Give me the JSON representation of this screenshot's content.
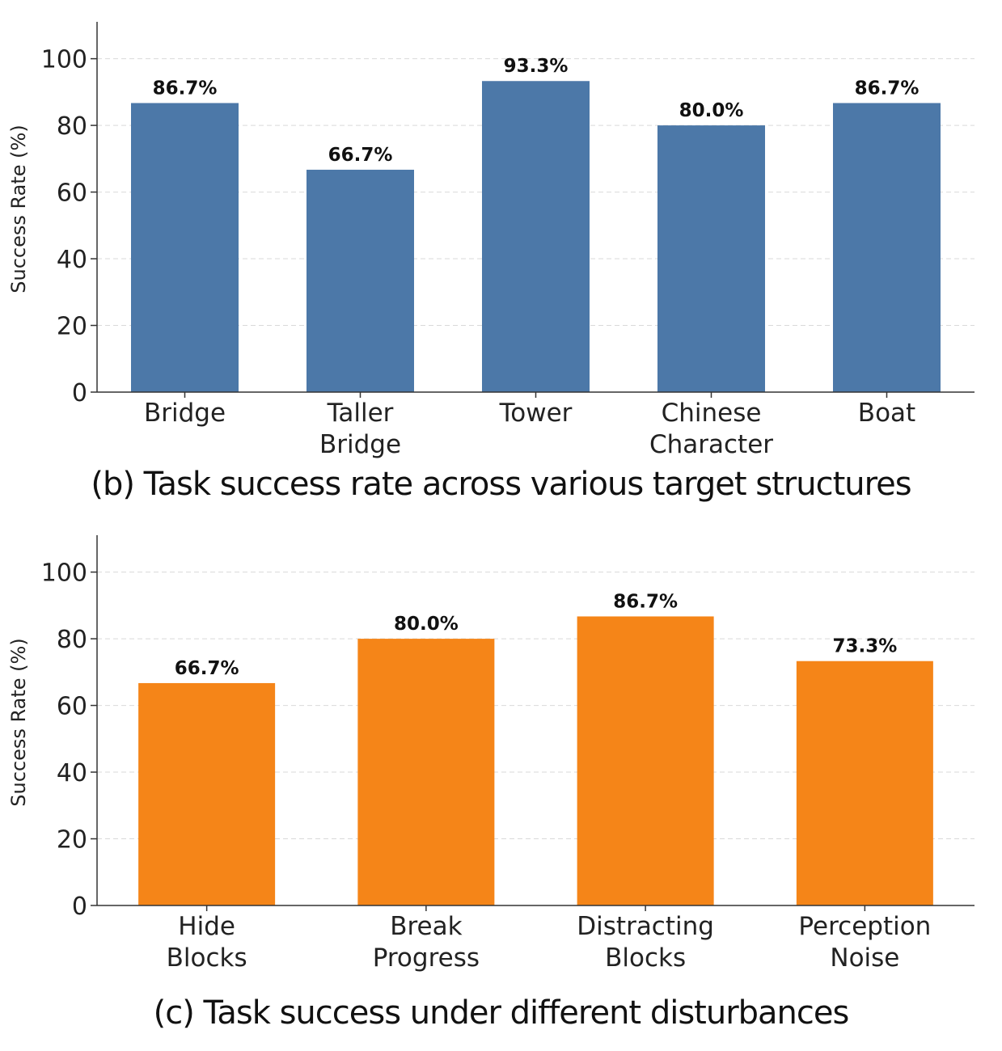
{
  "captions": {
    "b": "(b) Task success rate across various target structures",
    "c": "(c) Task success under different disturbances"
  },
  "colors": {
    "chart_b_bar": "#4c78a8",
    "chart_c_bar": "#f58518"
  },
  "chart_data": [
    {
      "type": "bar",
      "categories": [
        [
          "Bridge"
        ],
        [
          "Taller",
          "Bridge"
        ],
        [
          "Tower"
        ],
        [
          "Chinese",
          "Character"
        ],
        [
          "Boat"
        ]
      ],
      "values": [
        86.7,
        66.7,
        93.3,
        80.0,
        86.7
      ],
      "value_labels": [
        "86.7%",
        "66.7%",
        "93.3%",
        "80.0%",
        "86.7%"
      ],
      "ylabel": "Success Rate (%)",
      "ylim": [
        0,
        105
      ],
      "yticks": [
        0,
        20,
        40,
        60,
        80,
        100
      ],
      "grid": "horizontal dashed",
      "color": "#4c78a8"
    },
    {
      "type": "bar",
      "categories": [
        [
          "Hide",
          "Blocks"
        ],
        [
          "Break",
          "Progress"
        ],
        [
          "Distracting",
          "Blocks"
        ],
        [
          "Perception",
          "Noise"
        ]
      ],
      "values": [
        66.7,
        80.0,
        86.7,
        73.3
      ],
      "value_labels": [
        "66.7%",
        "80.0%",
        "86.7%",
        "73.3%"
      ],
      "ylabel": "Success Rate (%)",
      "ylim": [
        0,
        105
      ],
      "yticks": [
        0,
        20,
        40,
        60,
        80,
        100
      ],
      "grid": "horizontal dashed",
      "color": "#f58518"
    }
  ]
}
